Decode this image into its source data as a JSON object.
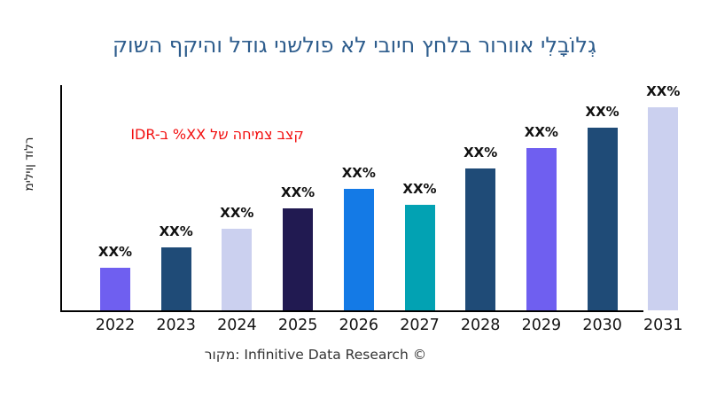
{
  "chart_data": {
    "type": "bar",
    "title": "קושה ףקיהו לדוג ינשלופ אל יבויח ץחלב רורווא ילִבָוֹלגְ",
    "title_color": "#2e5d8d",
    "ylabel": "מיליון דולר",
    "xlabel": "",
    "categories": [
      "2022",
      "2023",
      "2024",
      "2025",
      "2026",
      "2027",
      "2028",
      "2029",
      "2030",
      "2031"
    ],
    "series": [
      {
        "name": "market-value-relative-height",
        "values": [
          21,
          31,
          40,
          50,
          60,
          52,
          70,
          80,
          90,
          100
        ]
      }
    ],
    "value_labels": [
      "XX%",
      "XX%",
      "XX%",
      "XX%",
      "XX%",
      "XX%",
      "XX%",
      "XX%",
      "XX%",
      "XX%"
    ],
    "colors": {
      "bars": [
        "#6f5ff0",
        "#1f4b77",
        "#cbd0ef",
        "#211a51",
        "#147ae6",
        "#02a2b3",
        "#1f4b77",
        "#6f5ff0",
        "#1f4b77",
        "#cbd0ef"
      ],
      "axis": "#000000"
    },
    "ylim": [
      0,
      100
    ],
    "grid": false,
    "legend": "none",
    "annotation": {
      "text": "IDR-ב %XX לש החימצ בצק",
      "color": "#f20f0f"
    }
  },
  "footer": {
    "source_label": "רוקמ: Infinitive Data Research ©"
  }
}
